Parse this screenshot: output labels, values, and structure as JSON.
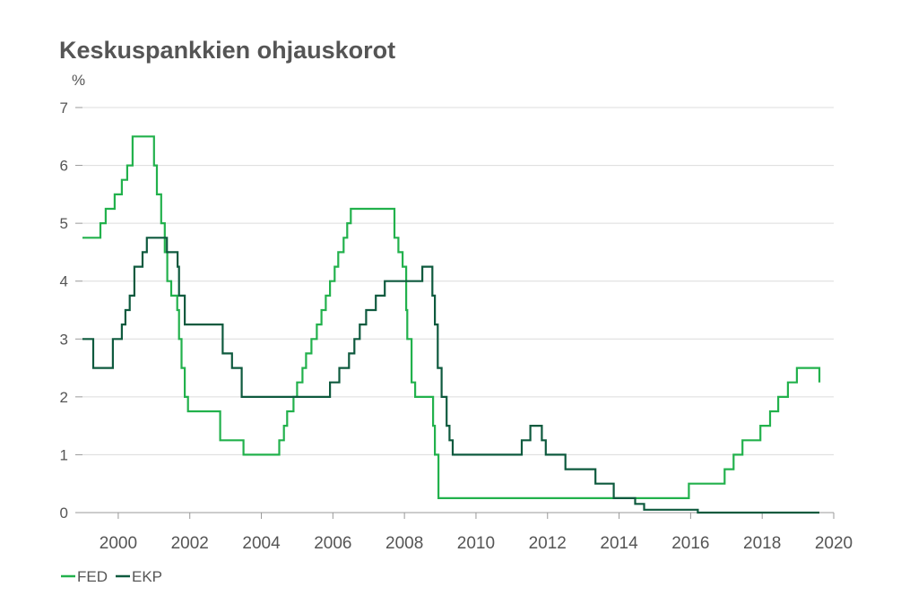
{
  "chart_data": {
    "type": "line",
    "title": "Keskuspankkien ohjauskorot",
    "ylabel": "%",
    "xlim": [
      1999.0,
      2020.0
    ],
    "ylim": [
      0,
      7
    ],
    "x_ticks": [
      "2000",
      "2002",
      "2004",
      "2006",
      "2008",
      "2010",
      "2012",
      "2014",
      "2016",
      "2018",
      "2020"
    ],
    "y_ticks": [
      "0",
      "1",
      "2",
      "3",
      "4",
      "5",
      "6",
      "7"
    ],
    "grid": true,
    "legend_position": "bottom-left",
    "series": [
      {
        "name": "FED",
        "color": "#22b14c",
        "points": [
          [
            1999.0,
            4.75
          ],
          [
            1999.5,
            4.75
          ],
          [
            1999.5,
            5.0
          ],
          [
            1999.65,
            5.0
          ],
          [
            1999.65,
            5.25
          ],
          [
            1999.9,
            5.25
          ],
          [
            1999.9,
            5.5
          ],
          [
            2000.1,
            5.5
          ],
          [
            2000.1,
            5.75
          ],
          [
            2000.25,
            5.75
          ],
          [
            2000.25,
            6.0
          ],
          [
            2000.4,
            6.0
          ],
          [
            2000.4,
            6.5
          ],
          [
            2001.0,
            6.5
          ],
          [
            2001.0,
            6.0
          ],
          [
            2001.08,
            6.0
          ],
          [
            2001.08,
            5.5
          ],
          [
            2001.2,
            5.5
          ],
          [
            2001.2,
            5.0
          ],
          [
            2001.3,
            5.0
          ],
          [
            2001.3,
            4.5
          ],
          [
            2001.37,
            4.5
          ],
          [
            2001.37,
            4.0
          ],
          [
            2001.48,
            4.0
          ],
          [
            2001.48,
            3.75
          ],
          [
            2001.65,
            3.75
          ],
          [
            2001.65,
            3.5
          ],
          [
            2001.7,
            3.5
          ],
          [
            2001.7,
            3.0
          ],
          [
            2001.77,
            3.0
          ],
          [
            2001.77,
            2.5
          ],
          [
            2001.86,
            2.5
          ],
          [
            2001.86,
            2.0
          ],
          [
            2001.95,
            2.0
          ],
          [
            2001.95,
            1.75
          ],
          [
            2002.85,
            1.75
          ],
          [
            2002.85,
            1.25
          ],
          [
            2003.5,
            1.25
          ],
          [
            2003.5,
            1.0
          ],
          [
            2004.5,
            1.0
          ],
          [
            2004.5,
            1.25
          ],
          [
            2004.63,
            1.25
          ],
          [
            2004.63,
            1.5
          ],
          [
            2004.72,
            1.5
          ],
          [
            2004.72,
            1.75
          ],
          [
            2004.9,
            1.75
          ],
          [
            2004.9,
            2.0
          ],
          [
            2005.0,
            2.0
          ],
          [
            2005.0,
            2.25
          ],
          [
            2005.15,
            2.25
          ],
          [
            2005.15,
            2.5
          ],
          [
            2005.25,
            2.5
          ],
          [
            2005.25,
            2.75
          ],
          [
            2005.4,
            2.75
          ],
          [
            2005.4,
            3.0
          ],
          [
            2005.55,
            3.0
          ],
          [
            2005.55,
            3.25
          ],
          [
            2005.68,
            3.25
          ],
          [
            2005.68,
            3.5
          ],
          [
            2005.8,
            3.5
          ],
          [
            2005.8,
            3.75
          ],
          [
            2005.92,
            3.75
          ],
          [
            2005.92,
            4.0
          ],
          [
            2006.05,
            4.0
          ],
          [
            2006.05,
            4.25
          ],
          [
            2006.15,
            4.25
          ],
          [
            2006.15,
            4.5
          ],
          [
            2006.3,
            4.5
          ],
          [
            2006.3,
            4.75
          ],
          [
            2006.4,
            4.75
          ],
          [
            2006.4,
            5.0
          ],
          [
            2006.5,
            5.0
          ],
          [
            2006.5,
            5.25
          ],
          [
            2007.72,
            5.25
          ],
          [
            2007.72,
            4.75
          ],
          [
            2007.83,
            4.75
          ],
          [
            2007.83,
            4.5
          ],
          [
            2007.95,
            4.5
          ],
          [
            2007.95,
            4.25
          ],
          [
            2008.05,
            4.25
          ],
          [
            2008.05,
            3.5
          ],
          [
            2008.08,
            3.5
          ],
          [
            2008.08,
            3.0
          ],
          [
            2008.2,
            3.0
          ],
          [
            2008.2,
            2.25
          ],
          [
            2008.3,
            2.25
          ],
          [
            2008.3,
            2.0
          ],
          [
            2008.8,
            2.0
          ],
          [
            2008.8,
            1.5
          ],
          [
            2008.85,
            1.5
          ],
          [
            2008.85,
            1.0
          ],
          [
            2008.95,
            1.0
          ],
          [
            2008.95,
            0.25
          ],
          [
            2015.95,
            0.25
          ],
          [
            2015.95,
            0.5
          ],
          [
            2016.95,
            0.5
          ],
          [
            2016.95,
            0.75
          ],
          [
            2017.2,
            0.75
          ],
          [
            2017.2,
            1.0
          ],
          [
            2017.45,
            1.0
          ],
          [
            2017.45,
            1.25
          ],
          [
            2017.95,
            1.25
          ],
          [
            2017.95,
            1.5
          ],
          [
            2018.22,
            1.5
          ],
          [
            2018.22,
            1.75
          ],
          [
            2018.45,
            1.75
          ],
          [
            2018.45,
            2.0
          ],
          [
            2018.72,
            2.0
          ],
          [
            2018.72,
            2.25
          ],
          [
            2018.97,
            2.25
          ],
          [
            2018.97,
            2.5
          ],
          [
            2019.6,
            2.5
          ],
          [
            2019.6,
            2.25
          ]
        ]
      },
      {
        "name": "EKP",
        "color": "#0e5a3e",
        "points": [
          [
            1999.0,
            3.0
          ],
          [
            1999.3,
            3.0
          ],
          [
            1999.3,
            2.5
          ],
          [
            1999.85,
            2.5
          ],
          [
            1999.85,
            3.0
          ],
          [
            2000.1,
            3.0
          ],
          [
            2000.1,
            3.25
          ],
          [
            2000.2,
            3.25
          ],
          [
            2000.2,
            3.5
          ],
          [
            2000.32,
            3.5
          ],
          [
            2000.32,
            3.75
          ],
          [
            2000.45,
            3.75
          ],
          [
            2000.45,
            4.25
          ],
          [
            2000.68,
            4.25
          ],
          [
            2000.68,
            4.5
          ],
          [
            2000.8,
            4.5
          ],
          [
            2000.8,
            4.75
          ],
          [
            2001.36,
            4.75
          ],
          [
            2001.36,
            4.5
          ],
          [
            2001.66,
            4.5
          ],
          [
            2001.66,
            4.25
          ],
          [
            2001.7,
            4.25
          ],
          [
            2001.7,
            3.75
          ],
          [
            2001.86,
            3.75
          ],
          [
            2001.86,
            3.25
          ],
          [
            2002.92,
            3.25
          ],
          [
            2002.92,
            2.75
          ],
          [
            2003.18,
            2.75
          ],
          [
            2003.18,
            2.5
          ],
          [
            2003.45,
            2.5
          ],
          [
            2003.45,
            2.0
          ],
          [
            2005.92,
            2.0
          ],
          [
            2005.92,
            2.25
          ],
          [
            2006.18,
            2.25
          ],
          [
            2006.18,
            2.5
          ],
          [
            2006.45,
            2.5
          ],
          [
            2006.45,
            2.75
          ],
          [
            2006.6,
            2.75
          ],
          [
            2006.6,
            3.0
          ],
          [
            2006.75,
            3.0
          ],
          [
            2006.75,
            3.25
          ],
          [
            2006.93,
            3.25
          ],
          [
            2006.93,
            3.5
          ],
          [
            2007.2,
            3.5
          ],
          [
            2007.2,
            3.75
          ],
          [
            2007.45,
            3.75
          ],
          [
            2007.45,
            4.0
          ],
          [
            2008.5,
            4.0
          ],
          [
            2008.5,
            4.25
          ],
          [
            2008.78,
            4.25
          ],
          [
            2008.78,
            3.75
          ],
          [
            2008.85,
            3.75
          ],
          [
            2008.85,
            3.25
          ],
          [
            2008.93,
            3.25
          ],
          [
            2008.93,
            2.5
          ],
          [
            2009.04,
            2.5
          ],
          [
            2009.04,
            2.0
          ],
          [
            2009.18,
            2.0
          ],
          [
            2009.18,
            1.5
          ],
          [
            2009.26,
            1.5
          ],
          [
            2009.26,
            1.25
          ],
          [
            2009.35,
            1.25
          ],
          [
            2009.35,
            1.0
          ],
          [
            2011.28,
            1.0
          ],
          [
            2011.28,
            1.25
          ],
          [
            2011.52,
            1.25
          ],
          [
            2011.52,
            1.5
          ],
          [
            2011.84,
            1.5
          ],
          [
            2011.84,
            1.25
          ],
          [
            2011.95,
            1.25
          ],
          [
            2011.95,
            1.0
          ],
          [
            2012.5,
            1.0
          ],
          [
            2012.5,
            0.75
          ],
          [
            2013.34,
            0.75
          ],
          [
            2013.34,
            0.5
          ],
          [
            2013.85,
            0.5
          ],
          [
            2013.85,
            0.25
          ],
          [
            2014.45,
            0.25
          ],
          [
            2014.45,
            0.15
          ],
          [
            2014.7,
            0.15
          ],
          [
            2014.7,
            0.05
          ],
          [
            2016.2,
            0.05
          ],
          [
            2016.2,
            0.0
          ],
          [
            2019.6,
            0.0
          ]
        ]
      }
    ]
  }
}
